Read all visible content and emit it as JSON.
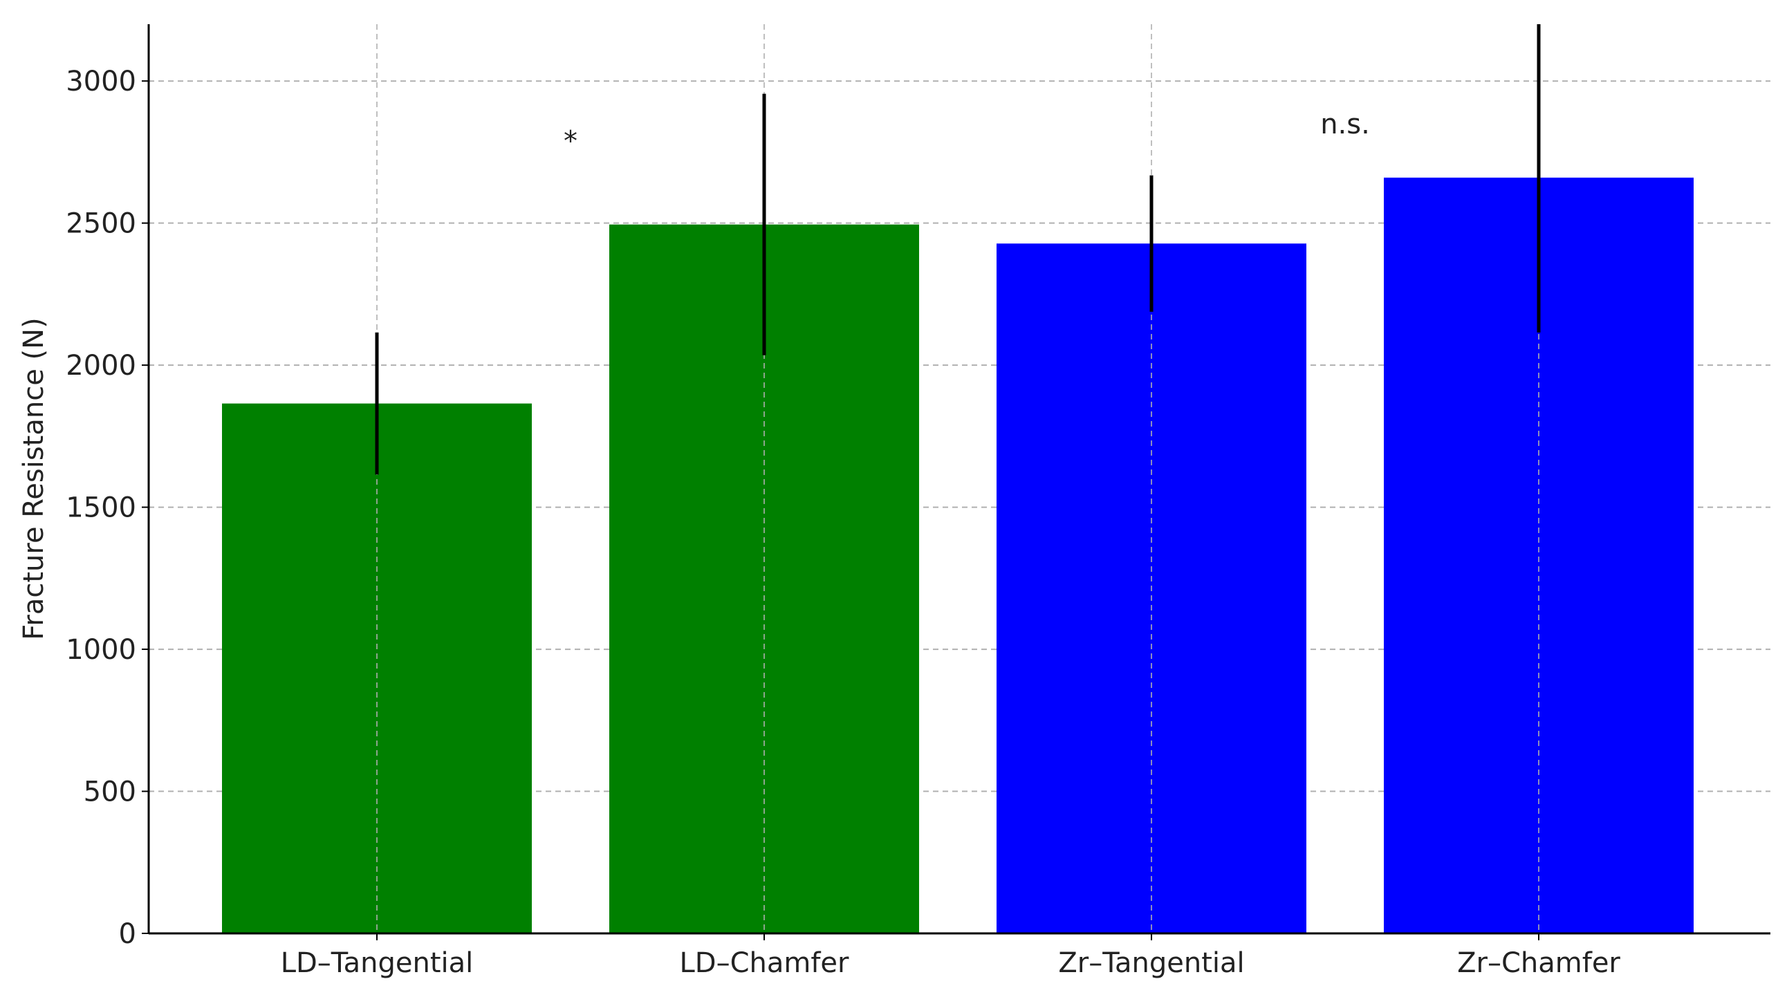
{
  "chart_data": {
    "type": "bar",
    "title": "",
    "xlabel": "",
    "ylabel": "Fracture Resistance (N)",
    "categories": [
      "LD–Tangential",
      "LD–Chamfer",
      "Zr–Tangential",
      "Zr–Chamfer"
    ],
    "values": [
      1865,
      2495,
      2428,
      2660
    ],
    "error": [
      250,
      460,
      240,
      545
    ],
    "bar_colors": [
      "#008000",
      "#008000",
      "#0000ff",
      "#0000ff"
    ],
    "error_bar_color": "#000000",
    "ylim": [
      0,
      3200
    ],
    "yticks": [
      0,
      500,
      1000,
      1500,
      2000,
      2500,
      3000
    ],
    "ytick_labels": [
      "0",
      "500",
      "1000",
      "1500",
      "2000",
      "2500",
      "3000"
    ],
    "grid": true,
    "annotations": [
      {
        "text": "*",
        "between": [
          "LD–Tangential",
          "LD–Chamfer"
        ],
        "y": 2790
      },
      {
        "text": "n.s.",
        "between": [
          "Zr–Tangential",
          "Zr–Chamfer"
        ],
        "y": 2850
      }
    ]
  }
}
